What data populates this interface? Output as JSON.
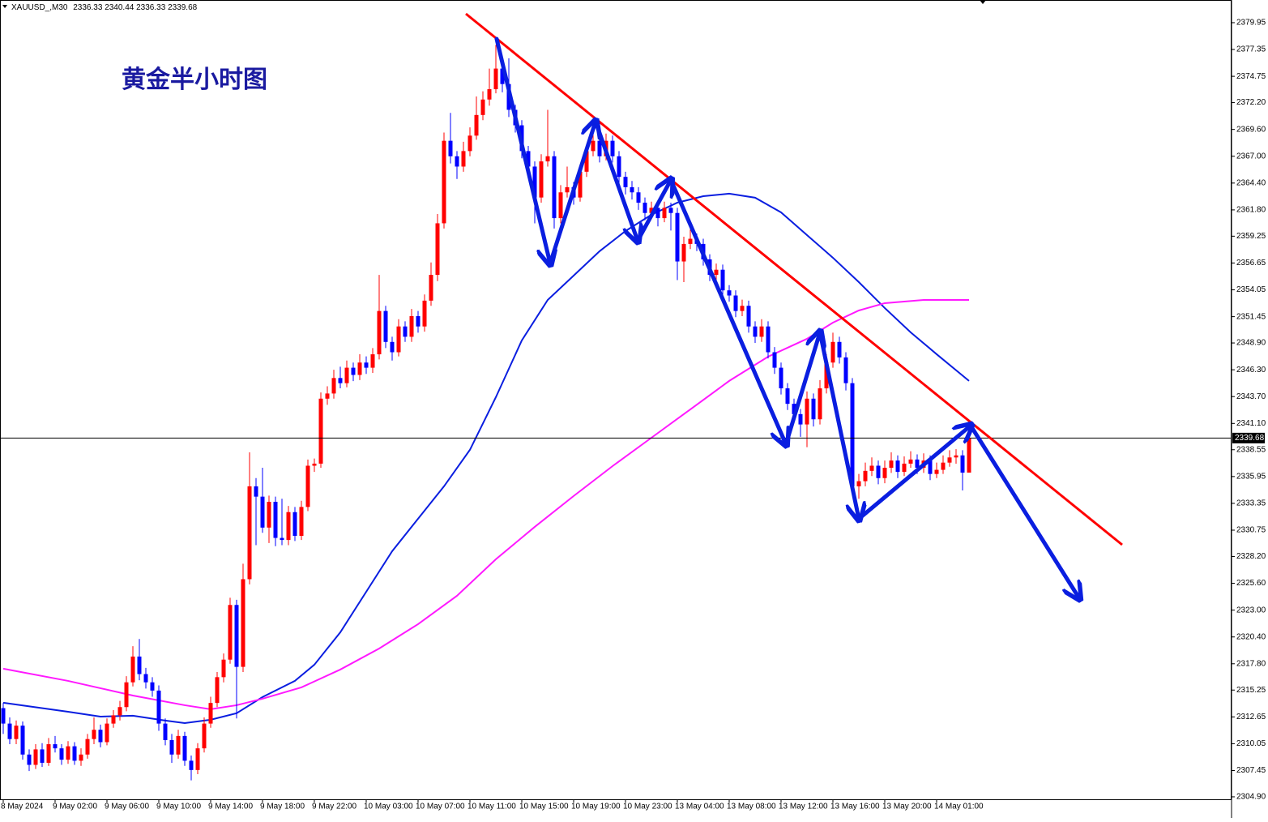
{
  "chart_data": {
    "type": "candlestick",
    "title": "黄金半小时图",
    "symbol": "XAUUSD_,M30",
    "up_color": "#ff0000",
    "down_color": "#0000ff",
    "ylim": [
      2304.66,
      2381.99
    ],
    "yticks": [
      2379.95,
      2377.35,
      2374.75,
      {
        "value": 2372.2,
        "label": "2372.20"
      },
      {
        "value": 2369.6,
        "label": "2369.60"
      },
      {
        "value": 2367,
        "label": "2367.00"
      },
      {
        "value": 2364.4,
        "label": "2364.40"
      },
      {
        "value": 2361.8,
        "label": "2361.80"
      },
      2359.25,
      2356.65,
      2354.05,
      2351.45,
      {
        "value": 2348.9,
        "label": "2348.90"
      },
      {
        "value": 2346.3,
        "label": "2346.30"
      },
      {
        "value": 2343.7,
        "label": "2343.70"
      },
      {
        "value": 2341.1,
        "label": "2341.10"
      },
      2338.55,
      2335.95,
      2333.35,
      2330.75,
      {
        "value": 2328.2,
        "label": "2328.20"
      },
      {
        "value": 2325.6,
        "label": "2325.60"
      },
      {
        "value": 2323,
        "label": "2323.00"
      },
      {
        "value": 2320.4,
        "label": "2320.40"
      },
      {
        "value": 2317.8,
        "label": "2317.80"
      },
      2315.25,
      2312.65,
      2310.05,
      2307.45,
      {
        "value": 2304.9,
        "label": "2304.90"
      }
    ],
    "categories": [
      "8 May 2024",
      null,
      null,
      null,
      null,
      null,
      null,
      null,
      "9 May 02:00",
      null,
      null,
      null,
      null,
      null,
      null,
      null,
      "9 May 06:00",
      null,
      null,
      null,
      null,
      null,
      null,
      null,
      "9 May 10:00",
      null,
      null,
      null,
      null,
      null,
      null,
      null,
      "9 May 14:00",
      null,
      null,
      null,
      null,
      null,
      null,
      null,
      "9 May 18:00",
      null,
      null,
      null,
      null,
      null,
      null,
      null,
      "9 May 22:00",
      null,
      null,
      null,
      null,
      null,
      null,
      null,
      "10 May 03:00",
      null,
      null,
      null,
      null,
      null,
      null,
      null,
      "10 May 07:00",
      null,
      null,
      null,
      null,
      null,
      null,
      null,
      "10 May 11:00",
      null,
      null,
      null,
      null,
      null,
      null,
      null,
      "10 May 15:00",
      null,
      null,
      null,
      null,
      null,
      null,
      null,
      "10 May 19:00",
      null,
      null,
      null,
      null,
      null,
      null,
      null,
      "10 May 23:00",
      null,
      null,
      null,
      null,
      null,
      null,
      null,
      "13 May 04:00",
      null,
      null,
      null,
      null,
      null,
      null,
      null,
      "13 May 08:00",
      null,
      null,
      null,
      null,
      null,
      null,
      null,
      "13 May 12:00",
      null,
      null,
      null,
      null,
      null,
      null,
      null,
      "13 May 16:00",
      null,
      null,
      null,
      null,
      null,
      null,
      null,
      "13 May 20:00",
      null,
      null,
      null,
      null,
      null,
      null,
      null,
      "14 May 01:00",
      null,
      null,
      null,
      null,
      null
    ],
    "ohlc": [
      [
        2313.5,
        2314.0,
        2311.0,
        2312.0
      ],
      [
        2312.0,
        2312.6,
        2310.0,
        2310.5
      ],
      [
        2310.5,
        2312.3,
        2310.0,
        2311.8
      ],
      [
        2311.8,
        2312.2,
        2308.5,
        2309.0
      ],
      [
        2309.0,
        2309.5,
        2307.4,
        2308.0
      ],
      [
        2308.0,
        2310.0,
        2307.6,
        2309.5
      ],
      [
        2309.5,
        2310.1,
        2307.8,
        2308.2
      ],
      [
        2308.2,
        2310.6,
        2307.9,
        2310.0
      ],
      [
        2310.0,
        2310.8,
        2309.2,
        2309.6
      ],
      [
        2309.6,
        2310.0,
        2308.0,
        2308.5
      ],
      [
        2308.5,
        2310.3,
        2308.1,
        2309.8
      ],
      [
        2309.8,
        2310.2,
        2308.0,
        2308.4
      ],
      [
        2308.4,
        2309.6,
        2307.9,
        2309.0
      ],
      [
        2309.0,
        2311.0,
        2308.6,
        2310.5
      ],
      [
        2310.5,
        2312.6,
        2310.0,
        2311.4
      ],
      [
        2311.4,
        2311.9,
        2309.7,
        2310.2
      ],
      [
        2310.2,
        2312.5,
        2309.9,
        2312.0
      ],
      [
        2312.0,
        2313.3,
        2311.6,
        2312.8
      ],
      [
        2312.8,
        2314.2,
        2312.3,
        2313.6
      ],
      [
        2313.6,
        2316.6,
        2313.2,
        2316.0
      ],
      [
        2316.0,
        2319.5,
        2315.6,
        2318.5
      ],
      [
        2318.5,
        2320.2,
        2316.2,
        2316.8
      ],
      [
        2316.8,
        2317.4,
        2315.4,
        2316.0
      ],
      [
        2316.0,
        2316.5,
        2314.6,
        2315.2
      ],
      [
        2315.2,
        2315.7,
        2311.3,
        2312.0
      ],
      [
        2312.0,
        2312.5,
        2309.9,
        2310.4
      ],
      [
        2310.4,
        2311.0,
        2308.2,
        2309.0
      ],
      [
        2309.0,
        2311.4,
        2308.6,
        2310.8
      ],
      [
        2310.8,
        2311.2,
        2307.9,
        2308.4
      ],
      [
        2308.4,
        2308.9,
        2306.5,
        2307.5
      ],
      [
        2307.5,
        2310.1,
        2307.1,
        2309.6
      ],
      [
        2309.6,
        2312.6,
        2309.2,
        2312.0
      ],
      [
        2312.0,
        2314.6,
        2311.6,
        2314.0
      ],
      [
        2314.0,
        2317.0,
        2313.6,
        2316.5
      ],
      [
        2316.5,
        2318.8,
        2316.0,
        2318.2
      ],
      [
        2318.2,
        2324.2,
        2317.8,
        2323.5
      ],
      [
        2323.5,
        2324.0,
        2312.5,
        2317.5
      ],
      [
        2317.5,
        2327.5,
        2317.0,
        2326.0
      ],
      [
        2326.0,
        2338.3,
        2325.5,
        2335.0
      ],
      [
        2335.0,
        2335.8,
        2329.3,
        2334.0
      ],
      [
        2334.0,
        2336.8,
        2330.5,
        2331.0
      ],
      [
        2331.0,
        2334.1,
        2329.5,
        2333.5
      ],
      [
        2333.5,
        2334.0,
        2329.2,
        2330.0
      ],
      [
        2330.0,
        2333.8,
        2329.3,
        2329.8
      ],
      [
        2329.8,
        2333.1,
        2329.3,
        2332.5
      ],
      [
        2332.5,
        2333.0,
        2329.7,
        2330.2
      ],
      [
        2330.2,
        2333.6,
        2329.8,
        2333.0
      ],
      [
        2333.0,
        2337.6,
        2332.6,
        2337.0
      ],
      [
        2337.0,
        2337.7,
        2336.4,
        2337.2
      ],
      [
        2337.2,
        2344.1,
        2336.8,
        2343.5
      ],
      [
        2343.5,
        2344.7,
        2342.9,
        2344.0
      ],
      [
        2344.0,
        2346.3,
        2343.5,
        2345.5
      ],
      [
        2345.5,
        2346.6,
        2344.5,
        2345.0
      ],
      [
        2345.0,
        2347.2,
        2344.6,
        2346.5
      ],
      [
        2346.5,
        2347.0,
        2345.2,
        2345.8
      ],
      [
        2345.8,
        2347.8,
        2345.3,
        2347.0
      ],
      [
        2347.0,
        2347.6,
        2345.9,
        2346.5
      ],
      [
        2346.5,
        2348.4,
        2346.0,
        2347.8
      ],
      [
        2347.8,
        2355.5,
        2347.3,
        2352.0
      ],
      [
        2352.0,
        2352.5,
        2348.4,
        2349.0
      ],
      [
        2349.0,
        2349.5,
        2347.2,
        2348.0
      ],
      [
        2348.0,
        2351.2,
        2347.6,
        2350.5
      ],
      [
        2350.5,
        2351.0,
        2349.0,
        2349.5
      ],
      [
        2349.5,
        2352.2,
        2349.0,
        2351.5
      ],
      [
        2351.5,
        2352.0,
        2349.9,
        2350.5
      ],
      [
        2350.5,
        2353.6,
        2350.0,
        2353.0
      ],
      [
        2353.0,
        2356.7,
        2352.5,
        2355.5
      ],
      [
        2355.5,
        2361.4,
        2354.9,
        2360.5
      ],
      [
        2360.5,
        2369.3,
        2360.0,
        2368.5
      ],
      [
        2368.5,
        2371.2,
        2366.3,
        2367.0
      ],
      [
        2367.0,
        2367.5,
        2364.8,
        2366.0
      ],
      [
        2366.0,
        2368.4,
        2365.5,
        2367.5
      ],
      [
        2367.5,
        2369.8,
        2367.0,
        2369.0
      ],
      [
        2369.0,
        2372.8,
        2368.6,
        2371.0
      ],
      [
        2371.0,
        2373.3,
        2370.5,
        2372.5
      ],
      [
        2372.5,
        2375.5,
        2371.9,
        2373.5
      ],
      [
        2373.5,
        2377.8,
        2373.1,
        2375.5
      ],
      [
        2375.5,
        2376.0,
        2373.2,
        2374.0
      ],
      [
        2374.0,
        2376.5,
        2370.8,
        2371.5
      ],
      [
        2371.5,
        2372.0,
        2369.3,
        2370.0
      ],
      [
        2370.0,
        2370.5,
        2366.8,
        2367.5
      ],
      [
        2367.5,
        2368.0,
        2365.3,
        2366.0
      ],
      [
        2366.0,
        2366.5,
        2360.5,
        2363.0
      ],
      [
        2363.0,
        2367.2,
        2362.5,
        2366.5
      ],
      [
        2366.5,
        2371.5,
        2366.0,
        2367.0
      ],
      [
        2367.0,
        2367.5,
        2360.0,
        2361.0
      ],
      [
        2361.0,
        2364.2,
        2360.5,
        2363.5
      ],
      [
        2363.5,
        2366.0,
        2363.0,
        2364.0
      ],
      [
        2364.0,
        2364.5,
        2362.3,
        2363.0
      ],
      [
        2363.0,
        2366.1,
        2362.6,
        2365.5
      ],
      [
        2365.5,
        2368.2,
        2365.0,
        2367.5
      ],
      [
        2367.5,
        2369.6,
        2367.0,
        2368.5
      ],
      [
        2368.5,
        2369.0,
        2366.4,
        2367.0
      ],
      [
        2367.0,
        2369.2,
        2366.6,
        2368.5
      ],
      [
        2368.5,
        2369.0,
        2366.4,
        2367.0
      ],
      [
        2367.0,
        2367.5,
        2364.3,
        2365.0
      ],
      [
        2365.0,
        2365.5,
        2363.3,
        2364.0
      ],
      [
        2364.0,
        2364.6,
        2362.8,
        2363.5
      ],
      [
        2363.5,
        2364.0,
        2361.8,
        2362.5
      ],
      [
        2362.5,
        2363.0,
        2360.8,
        2361.5
      ],
      [
        2361.5,
        2362.6,
        2361.0,
        2362.0
      ],
      [
        2362.0,
        2362.5,
        2360.2,
        2361.0
      ],
      [
        2361.0,
        2362.6,
        2360.6,
        2362.0
      ],
      [
        2362.0,
        2362.5,
        2359.8,
        2361.5
      ],
      [
        2361.5,
        2362.0,
        2355.0,
        2356.8
      ],
      [
        2356.8,
        2359.2,
        2354.8,
        2358.5
      ],
      [
        2358.5,
        2359.9,
        2358.0,
        2359.0
      ],
      [
        2359.0,
        2359.5,
        2357.8,
        2358.5
      ],
      [
        2358.5,
        2359.0,
        2356.4,
        2357.0
      ],
      [
        2357.0,
        2357.5,
        2354.9,
        2355.5
      ],
      [
        2355.5,
        2356.6,
        2355.0,
        2356.0
      ],
      [
        2356.0,
        2356.5,
        2353.4,
        2354.0
      ],
      [
        2354.0,
        2354.5,
        2352.9,
        2353.5
      ],
      [
        2353.5,
        2354.0,
        2351.4,
        2352.0
      ],
      [
        2352.0,
        2353.1,
        2351.5,
        2352.5
      ],
      [
        2352.5,
        2353.0,
        2349.9,
        2350.5
      ],
      [
        2350.5,
        2351.0,
        2348.9,
        2349.5
      ],
      [
        2349.5,
        2351.2,
        2349.0,
        2350.5
      ],
      [
        2350.5,
        2351.0,
        2347.4,
        2348.0
      ],
      [
        2348.0,
        2348.5,
        2345.9,
        2346.5
      ],
      [
        2346.5,
        2347.0,
        2343.9,
        2344.5
      ],
      [
        2344.5,
        2345.0,
        2342.4,
        2343.0
      ],
      [
        2343.0,
        2343.5,
        2341.4,
        2342.0
      ],
      [
        2342.0,
        2342.5,
        2339.8,
        2341.0
      ],
      [
        2341.0,
        2344.2,
        2338.8,
        2343.5
      ],
      [
        2343.5,
        2344.0,
        2340.8,
        2341.5
      ],
      [
        2341.5,
        2345.3,
        2341.0,
        2344.5
      ],
      [
        2344.5,
        2347.8,
        2344.0,
        2347.0
      ],
      [
        2347.0,
        2349.9,
        2346.5,
        2349.0
      ],
      [
        2349.0,
        2349.5,
        2346.9,
        2347.5
      ],
      [
        2347.5,
        2348.0,
        2344.3,
        2345.0
      ],
      [
        2345.0,
        2345.5,
        2334.2,
        2335.0
      ],
      [
        2335.0,
        2336.2,
        2333.8,
        2335.5
      ],
      [
        2335.5,
        2337.3,
        2335.0,
        2336.5
      ],
      [
        2336.5,
        2337.8,
        2336.0,
        2337.0
      ],
      [
        2337.0,
        2337.5,
        2335.2,
        2335.8
      ],
      [
        2335.8,
        2337.5,
        2335.3,
        2336.8
      ],
      [
        2336.8,
        2338.3,
        2336.3,
        2337.5
      ],
      [
        2337.5,
        2338.0,
        2335.8,
        2336.4
      ],
      [
        2336.4,
        2337.9,
        2336.0,
        2337.2
      ],
      [
        2337.2,
        2338.4,
        2336.8,
        2337.6
      ],
      [
        2337.6,
        2338.1,
        2336.2,
        2336.8
      ],
      [
        2336.8,
        2338.2,
        2336.3,
        2337.5
      ],
      [
        2337.5,
        2338.0,
        2335.6,
        2336.2
      ],
      [
        2336.2,
        2337.3,
        2335.8,
        2336.6
      ],
      [
        2336.6,
        2338.0,
        2336.2,
        2337.3
      ],
      [
        2337.3,
        2338.5,
        2336.9,
        2337.8
      ],
      [
        2337.8,
        2338.6,
        2337.2,
        2338.0
      ],
      [
        2338.0,
        2338.5,
        2334.6,
        2336.33
      ],
      [
        2336.33,
        2340.44,
        2336.33,
        2339.68
      ]
    ],
    "lines": [
      {
        "color": "#0a1ee0",
        "x": [
          0,
          10,
          15,
          20,
          25,
          28,
          32,
          36,
          40,
          45,
          48,
          52,
          56,
          60,
          64,
          68,
          72,
          76,
          80,
          84,
          88,
          92,
          96,
          100,
          104,
          108,
          112,
          116,
          120,
          124,
          128,
          132,
          136,
          140,
          144,
          149
        ],
        "values": [
          2314.02,
          2313.15,
          2312.68,
          2312.76,
          2312.29,
          2312.05,
          2312.37,
          2313.0,
          2314.57,
          2316.14,
          2317.71,
          2320.85,
          2324.78,
          2328.71,
          2331.86,
          2335.0,
          2338.54,
          2343.64,
          2349.14,
          2353.07,
          2355.43,
          2357.79,
          2359.75,
          2361.33,
          2362.5,
          2363.13,
          2363.37,
          2362.98,
          2361.56,
          2359.36,
          2357.16,
          2354.8,
          2352.29,
          2349.93,
          2347.81,
          2345.22
        ]
      },
      {
        "color": "#ff19ff",
        "x": [
          0,
          10,
          20,
          28,
          32,
          36,
          40,
          46,
          52,
          58,
          64,
          70,
          76,
          82,
          88,
          94,
          100,
          106,
          112,
          118,
          124,
          128,
          132,
          136,
          142,
          149
        ],
        "values": [
          2317.32,
          2316.14,
          2314.72,
          2313.78,
          2313.39,
          2313.78,
          2314.41,
          2315.51,
          2317.24,
          2319.28,
          2321.64,
          2324.39,
          2327.93,
          2331.07,
          2334.06,
          2336.96,
          2339.71,
          2342.46,
          2345.22,
          2347.57,
          2349.3,
          2350.87,
          2352.05,
          2352.76,
          2353.07,
          2353.07
        ]
      }
    ]
  }
}
